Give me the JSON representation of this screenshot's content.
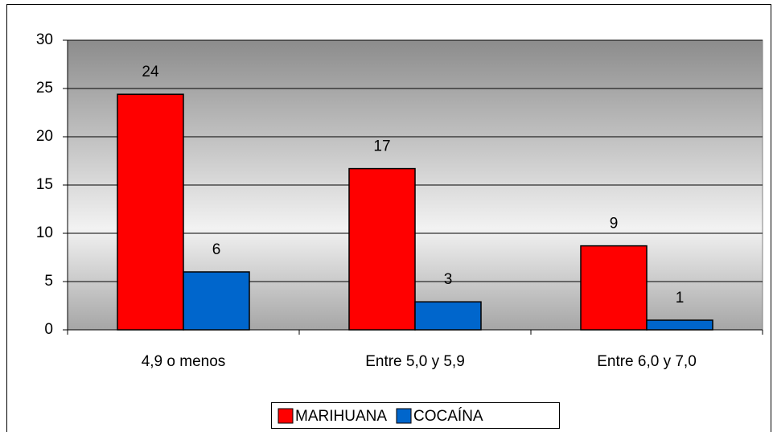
{
  "chart_data": {
    "type": "bar",
    "categories": [
      "4,9 o menos",
      "Entre 5,0 y 5,9",
      "Entre 6,0 y 7,0"
    ],
    "series": [
      {
        "name": "MARIHUANA",
        "color": "#ff0000",
        "values": [
          24.4,
          16.7,
          8.7
        ],
        "value_labels": [
          "24",
          "17",
          "9"
        ]
      },
      {
        "name": "COCAÍNA",
        "color": "#0066cc",
        "values": [
          6.0,
          2.9,
          1.0
        ],
        "value_labels": [
          "6",
          "3",
          "1"
        ]
      }
    ],
    "ylim": [
      0,
      30
    ],
    "yticks": [
      0,
      5,
      10,
      15,
      20,
      25,
      30
    ],
    "grid": true,
    "legend": "bottom"
  }
}
